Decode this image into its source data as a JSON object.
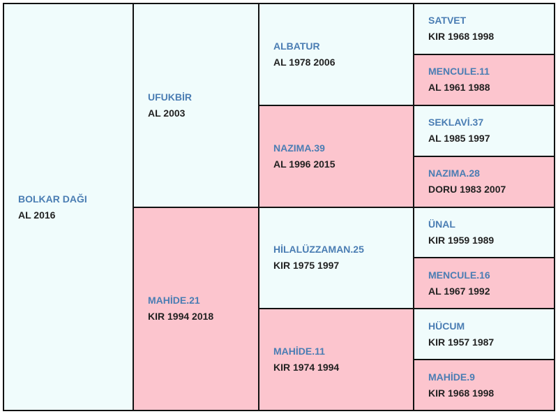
{
  "pedigree": [
    {
      "name": "BOLKAR DAĞI",
      "info": "AL 2016"
    },
    {
      "name": "UFUKBİR",
      "info": "AL 2003"
    },
    {
      "name": "MAHİDE.21",
      "info": "KIR 1994 2018"
    },
    {
      "name": "ALBATUR",
      "info": "AL 1978 2006"
    },
    {
      "name": "NAZIMA.39",
      "info": "AL 1996 2015"
    },
    {
      "name": "HİLALÜZZAMAN.25",
      "info": "KIR 1975 1997"
    },
    {
      "name": "MAHİDE.11",
      "info": "KIR 1974 1994"
    },
    {
      "name": "SATVET",
      "info": "KIR 1968 1998"
    },
    {
      "name": "MENCULE.11",
      "info": "AL 1961 1988"
    },
    {
      "name": "SEKLAVİ.37",
      "info": "AL 1985 1997"
    },
    {
      "name": "NAZIMA.28",
      "info": "DORU 1983 2007"
    },
    {
      "name": "ÜNAL",
      "info": "KIR 1959 1989"
    },
    {
      "name": "MENCULE.16",
      "info": "AL 1967 1992"
    },
    {
      "name": "HÜCUM",
      "info": "KIR 1957 1987"
    },
    {
      "name": "MAHİDE.9",
      "info": "KIR 1968 1998"
    }
  ]
}
